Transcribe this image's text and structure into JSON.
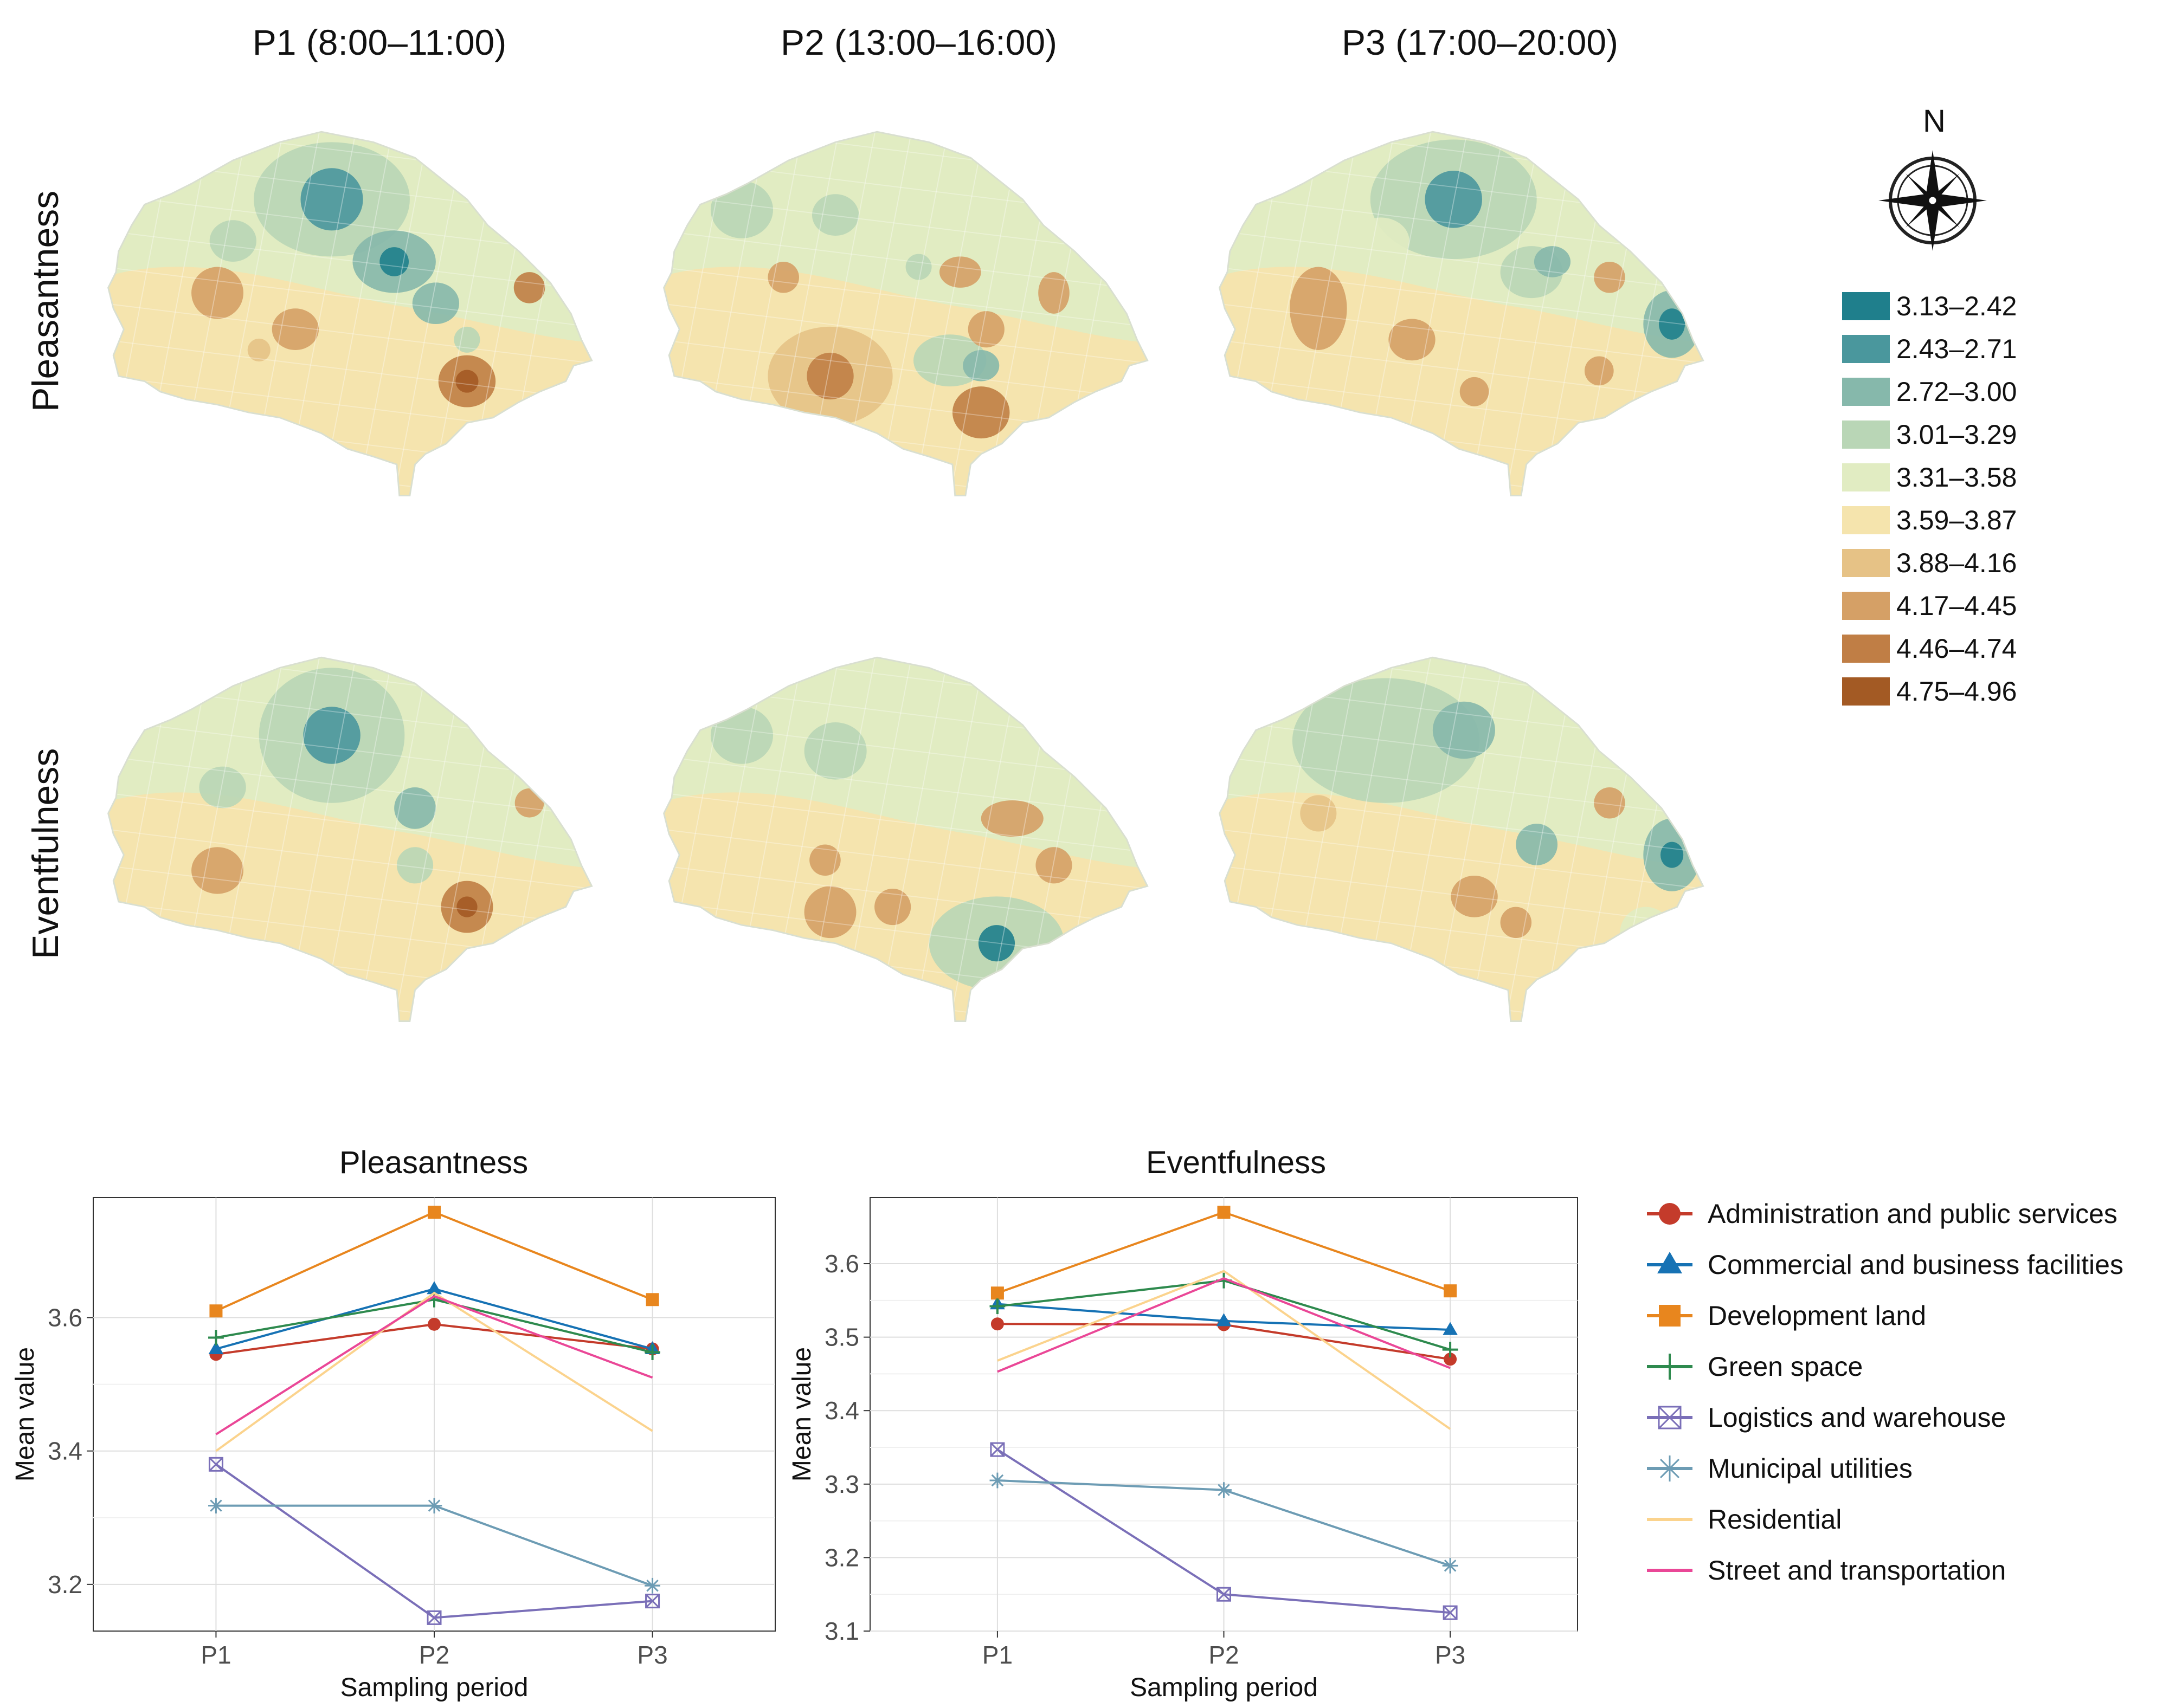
{
  "column_titles": [
    "P1 (8:00–11:00)",
    "P2 (13:00–16:00)",
    "P3 (17:00–20:00)"
  ],
  "row_labels": [
    "Pleasantness",
    "Eventfulness"
  ],
  "compass": {
    "label": "N",
    "icon": "compass-rose-icon"
  },
  "choropleth_legend": [
    {
      "label": "3.13–2.42",
      "color": "#1f7f8c"
    },
    {
      "label": "2.43–2.71",
      "color": "#4a979d"
    },
    {
      "label": "2.72–3.00",
      "color": "#86b8ab"
    },
    {
      "label": "3.01–3.29",
      "color": "#b9d6b6"
    },
    {
      "label": "3.31–3.58",
      "color": "#e1ecc2"
    },
    {
      "label": "3.59–3.87",
      "color": "#f5e4ad"
    },
    {
      "label": "3.88–4.16",
      "color": "#e6c286"
    },
    {
      "label": "4.17–4.45",
      "color": "#d5a066"
    },
    {
      "label": "4.46–4.74",
      "color": "#c07e45"
    },
    {
      "label": "4.75–4.96",
      "color": "#a35a24"
    }
  ],
  "series_legend": [
    {
      "name": "Administration and public services",
      "color": "#c43b2b",
      "marker": "circle"
    },
    {
      "name": "Commercial and business facilities",
      "color": "#1672b4",
      "marker": "triangle"
    },
    {
      "name": "Development land",
      "color": "#e8861e",
      "marker": "square"
    },
    {
      "name": "Green space",
      "color": "#2e8a4e",
      "marker": "plus"
    },
    {
      "name": "Logistics and warehouse",
      "color": "#7a6fb8",
      "marker": "boxx"
    },
    {
      "name": "Municipal utilities",
      "color": "#6d9cb4",
      "marker": "star"
    },
    {
      "name": "Residential",
      "color": "#fbd38d",
      "marker": "none"
    },
    {
      "name": "Street and transportation",
      "color": "#ea4797",
      "marker": "none"
    }
  ],
  "chart_data": [
    {
      "type": "line",
      "title": "Pleasantness",
      "xlabel": "Sampling period",
      "ylabel": "Mean value",
      "x": [
        "P1",
        "P2",
        "P3"
      ],
      "ylim": [
        3.13,
        3.78
      ],
      "yticks": [
        "3.2",
        "3.4",
        "3.6"
      ],
      "ytick_values": [
        3.2,
        3.4,
        3.6
      ],
      "series": [
        {
          "name": "Administration and public services",
          "values": [
            3.545,
            3.59,
            3.553
          ]
        },
        {
          "name": "Commercial and business facilities",
          "values": [
            3.553,
            3.643,
            3.553
          ]
        },
        {
          "name": "Development land",
          "values": [
            3.61,
            3.758,
            3.627
          ]
        },
        {
          "name": "Green space",
          "values": [
            3.57,
            3.627,
            3.548
          ]
        },
        {
          "name": "Logistics and warehouse",
          "values": [
            3.38,
            3.15,
            3.175
          ]
        },
        {
          "name": "Municipal utilities",
          "values": [
            3.318,
            3.318,
            3.198
          ]
        },
        {
          "name": "Residential",
          "values": [
            3.4,
            3.637,
            3.43
          ]
        },
        {
          "name": "Street and transportation",
          "values": [
            3.425,
            3.632,
            3.51
          ]
        }
      ]
    },
    {
      "type": "line",
      "title": "Eventfulness",
      "xlabel": "Sampling period",
      "ylabel": "Mean value",
      "x": [
        "P1",
        "P2",
        "P3"
      ],
      "ylim": [
        3.1,
        3.69
      ],
      "yticks": [
        "3.1",
        "3.2",
        "3.3",
        "3.4",
        "3.5",
        "3.6"
      ],
      "ytick_values": [
        3.1,
        3.2,
        3.3,
        3.4,
        3.5,
        3.6
      ],
      "series": [
        {
          "name": "Administration and public services",
          "values": [
            3.518,
            3.517,
            3.47
          ]
        },
        {
          "name": "Commercial and business facilities",
          "values": [
            3.545,
            3.522,
            3.51
          ]
        },
        {
          "name": "Development land",
          "values": [
            3.56,
            3.67,
            3.563
          ]
        },
        {
          "name": "Green space",
          "values": [
            3.542,
            3.577,
            3.483
          ]
        },
        {
          "name": "Logistics and warehouse",
          "values": [
            3.347,
            3.15,
            3.125
          ]
        },
        {
          "name": "Municipal utilities",
          "values": [
            3.305,
            3.292,
            3.189
          ]
        },
        {
          "name": "Residential",
          "values": [
            3.468,
            3.59,
            3.375
          ]
        },
        {
          "name": "Street and transportation",
          "values": [
            3.453,
            3.58,
            3.458
          ]
        }
      ]
    }
  ]
}
